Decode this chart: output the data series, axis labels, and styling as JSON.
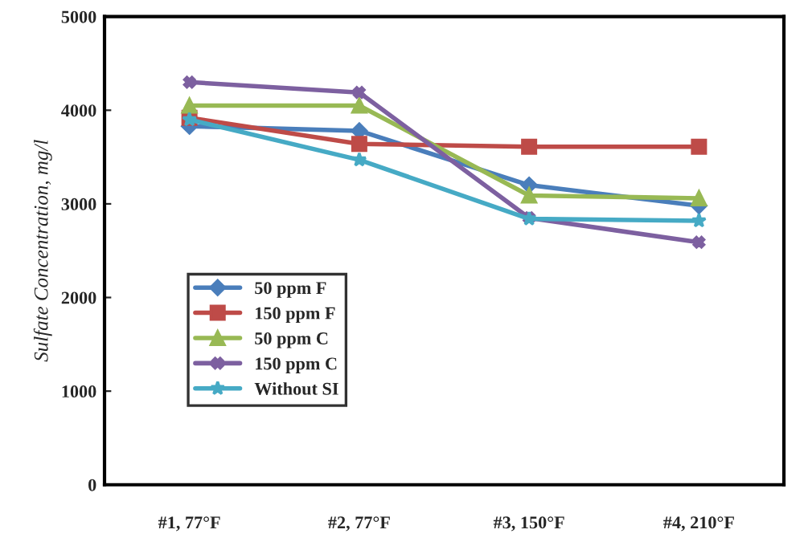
{
  "chart_data": {
    "type": "line",
    "ylabel": "Sulfate Concentration, mg/l",
    "categories": [
      "#1, 77°F",
      "#2, 77°F",
      "#3, 150°F",
      "#4, 210°F"
    ],
    "series": [
      {
        "name": "50 ppm F",
        "color": "#4a7ebb",
        "marker": "diamond",
        "values": [
          3830,
          3780,
          3200,
          2980
        ]
      },
      {
        "name": "150 ppm F",
        "color": "#be4b48",
        "marker": "square",
        "values": [
          3920,
          3640,
          3610,
          3610
        ]
      },
      {
        "name": "50 ppm C",
        "color": "#98b954",
        "marker": "triangle",
        "values": [
          4050,
          4050,
          3090,
          3060
        ]
      },
      {
        "name": "150 ppm C",
        "color": "#7d60a0",
        "marker": "cross",
        "values": [
          4300,
          4190,
          2850,
          2590
        ]
      },
      {
        "name": "Without SI",
        "color": "#46aac5",
        "marker": "star",
        "values": [
          3900,
          3470,
          2840,
          2820
        ]
      }
    ],
    "ylim": [
      0,
      5000
    ],
    "yticks": [
      0,
      1000,
      2000,
      3000,
      4000,
      5000
    ],
    "grid": false,
    "legend": "lower left",
    "line_style": "solid"
  }
}
